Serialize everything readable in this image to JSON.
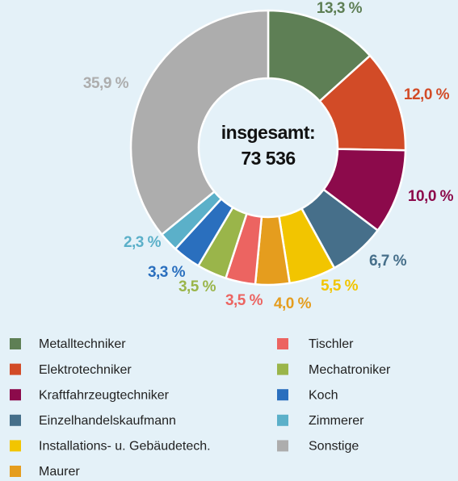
{
  "chart_data": {
    "type": "pie",
    "annotations": [
      "insgesamt:",
      "73 536"
    ],
    "categories": [
      "Metalltechniker",
      "Elektrotechniker",
      "Kraftfahrzeugtechniker",
      "Einzelhandelskaufmann",
      "Installations- u. Gebäudetech.",
      "Maurer",
      "Tischler",
      "Mechatroniker",
      "Koch",
      "Zimmerer",
      "Sonstige"
    ],
    "values": [
      13.3,
      12.0,
      10.0,
      6.7,
      5.5,
      4.0,
      3.5,
      3.5,
      3.3,
      2.3,
      35.9
    ],
    "value_labels": [
      "13,3 %",
      "12,0 %",
      "10,0 %",
      "6,7 %",
      "5,5 %",
      "4,0 %",
      "3,5 %",
      "3,5 %",
      "3,3 %",
      "2,3 %",
      "35,9 %"
    ],
    "colors": [
      "#5e7f55",
      "#d24b27",
      "#8c0a4b",
      "#466f8a",
      "#f2c500",
      "#e59d1e",
      "#ec6461",
      "#9ab54a",
      "#2a6fbe",
      "#5bb0c9",
      "#adadad"
    ]
  }
}
